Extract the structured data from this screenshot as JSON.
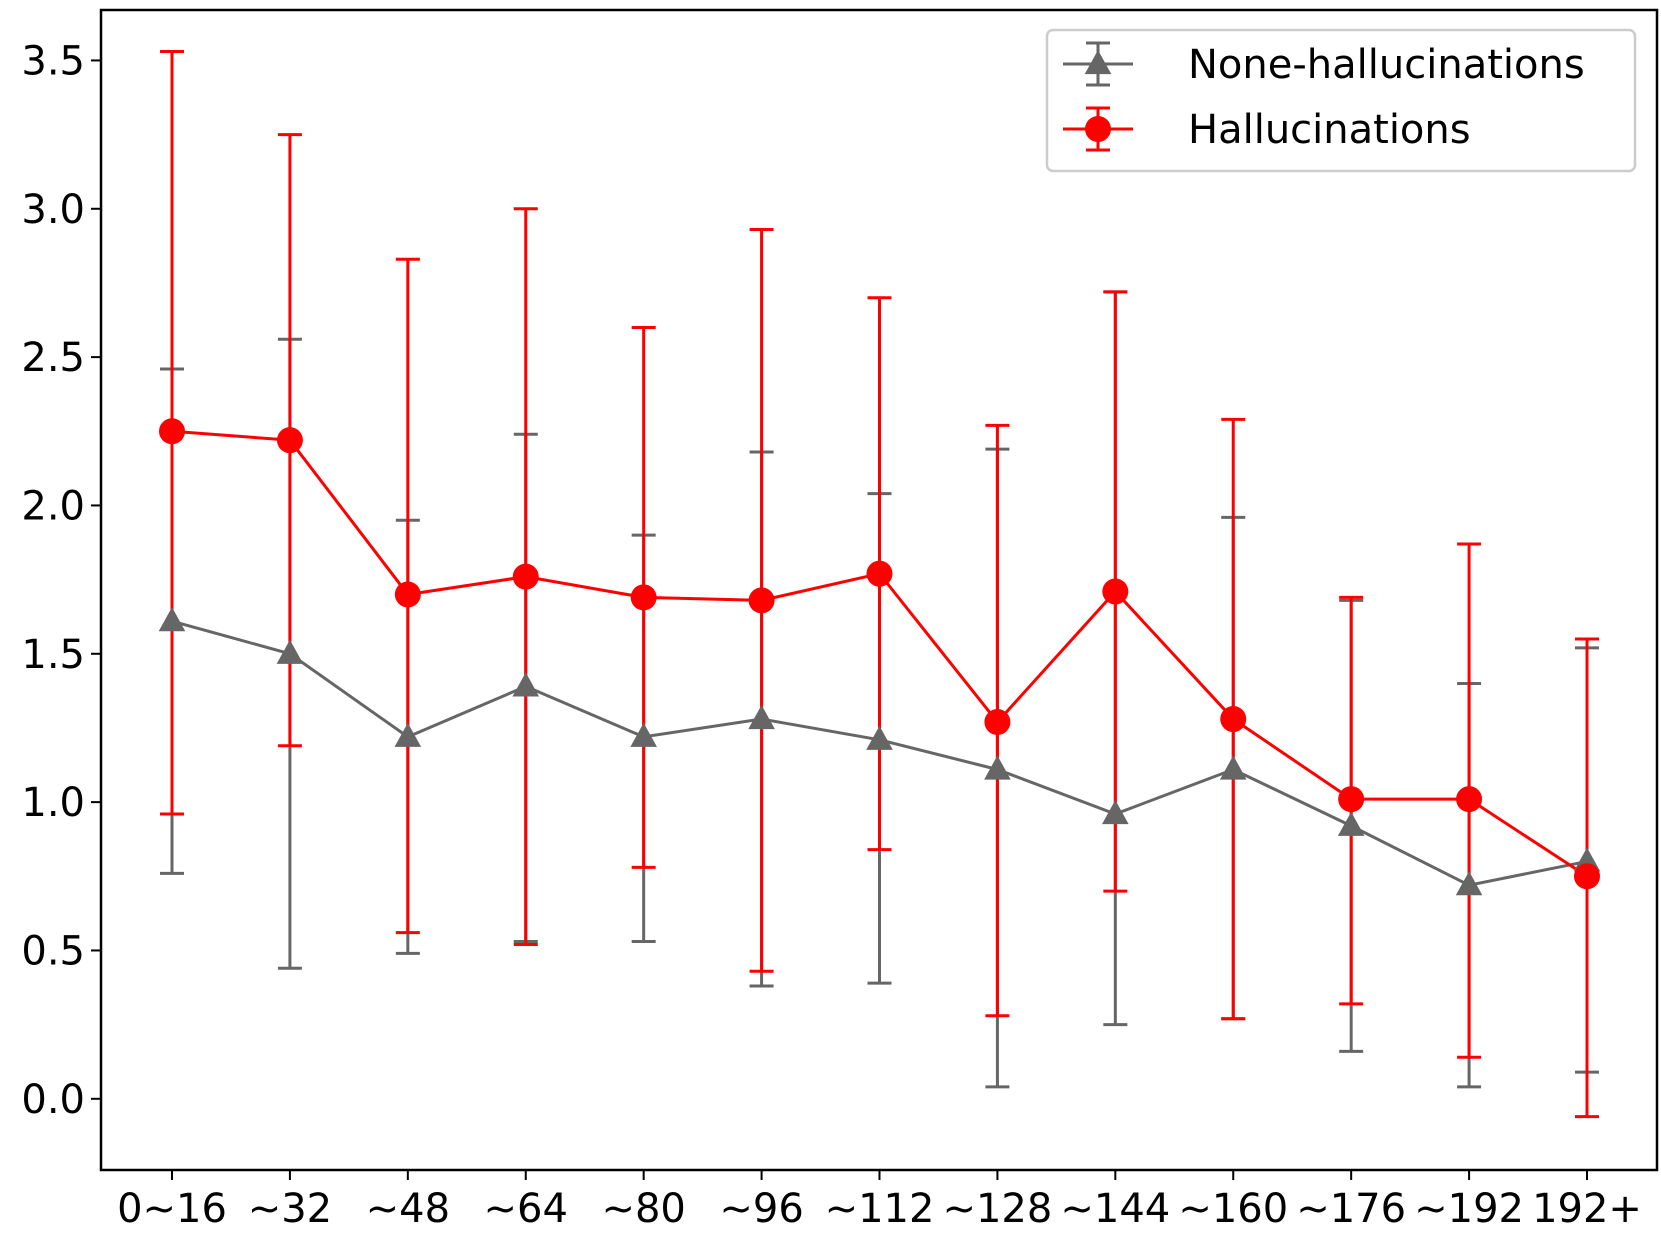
{
  "chart_data": {
    "type": "line",
    "title": "",
    "xlabel": "",
    "ylabel": "",
    "categories": [
      "0~16",
      "~32",
      "~48",
      "~64",
      "~80",
      "~96",
      "~112",
      "~128",
      "~144",
      "~160",
      "~176",
      "~192",
      "192+"
    ],
    "ylim": [
      -0.24,
      3.67
    ],
    "yticks": [
      0.0,
      0.5,
      1.0,
      1.5,
      2.0,
      2.5,
      3.0,
      3.5
    ],
    "ytick_labels": [
      "0.0",
      "0.5",
      "1.0",
      "1.5",
      "2.0",
      "2.5",
      "3.0",
      "3.5"
    ],
    "grid": false,
    "legend_position": "top-right",
    "series": [
      {
        "name": "None-hallucinations",
        "color": "#666666",
        "marker": "triangle",
        "values": [
          1.61,
          1.5,
          1.22,
          1.39,
          1.22,
          1.28,
          1.21,
          1.11,
          0.96,
          1.11,
          0.92,
          0.72,
          0.8
        ],
        "err_low": [
          0.76,
          0.44,
          0.49,
          0.53,
          0.53,
          0.38,
          0.39,
          0.04,
          0.25,
          0.27,
          0.16,
          0.04,
          0.09
        ],
        "err_high": [
          2.46,
          2.56,
          1.95,
          2.24,
          1.9,
          2.18,
          2.04,
          2.19,
          2.72,
          1.96,
          1.68,
          1.4,
          1.52
        ]
      },
      {
        "name": "Hallucinations",
        "color": "#ff0000",
        "marker": "circle",
        "values": [
          2.25,
          2.22,
          1.7,
          1.76,
          1.69,
          1.68,
          1.77,
          1.27,
          1.71,
          1.28,
          1.01,
          1.01,
          0.75
        ],
        "err_low": [
          0.96,
          1.19,
          0.56,
          0.52,
          0.78,
          0.43,
          0.84,
          0.28,
          0.7,
          0.27,
          0.32,
          0.14,
          -0.06
        ],
        "err_high": [
          3.53,
          3.25,
          2.83,
          3.0,
          2.6,
          2.93,
          2.7,
          2.27,
          2.72,
          2.29,
          1.69,
          1.87,
          1.55
        ]
      }
    ]
  }
}
